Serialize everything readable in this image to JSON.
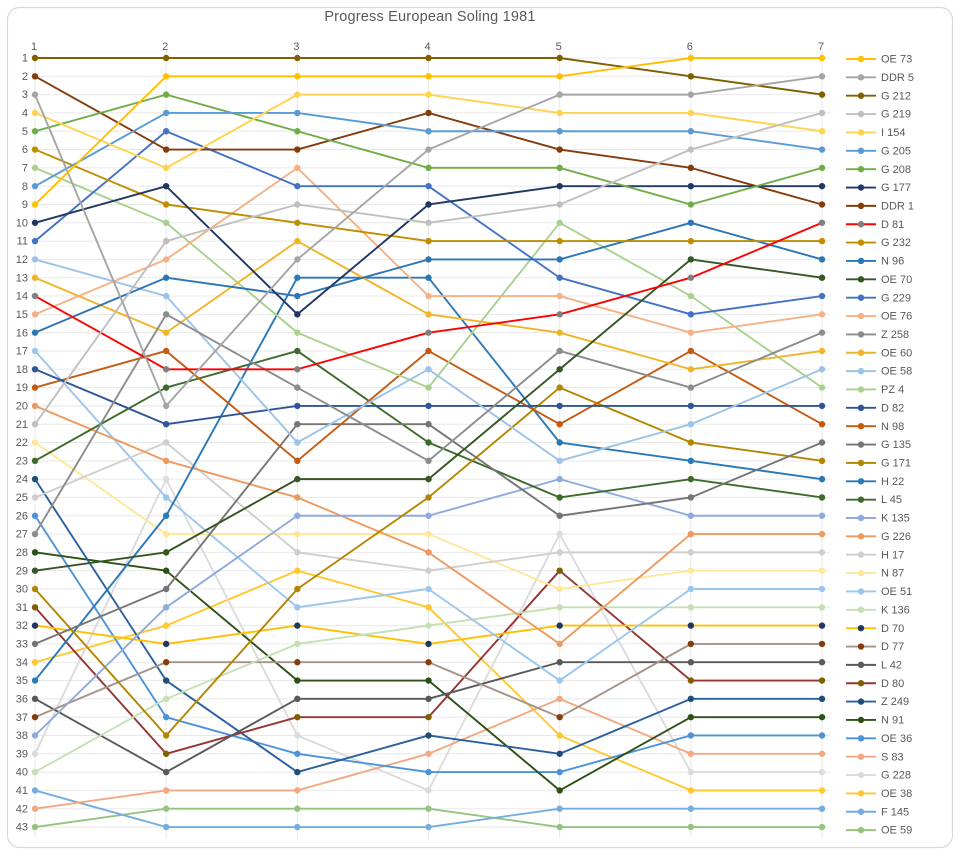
{
  "title": "Progress European Soling 1981",
  "chart_data": {
    "type": "line",
    "subtype": "bump-rank-progression",
    "title": "Progress European Soling 1981",
    "xlabel": "",
    "ylabel": "",
    "x_ticks": [
      "1",
      "2",
      "3",
      "4",
      "5",
      "6",
      "7"
    ],
    "y_ticks": [
      1,
      2,
      3,
      4,
      5,
      6,
      7,
      8,
      9,
      10,
      11,
      12,
      13,
      14,
      15,
      16,
      17,
      18,
      19,
      20,
      21,
      22,
      23,
      24,
      25,
      26,
      27,
      28,
      29,
      30,
      31,
      32,
      33,
      34,
      35,
      36,
      37,
      38,
      39,
      40,
      41,
      42,
      43
    ],
    "y_axis": {
      "min": 1,
      "max": 43,
      "inverted": true,
      "meaning": "standing after race"
    },
    "x_axis": {
      "min": 1,
      "max": 7,
      "meaning": "race number"
    },
    "grid": true,
    "legend_position": "right",
    "colors": {
      "axis_text": "#595959",
      "grid": "#E8E8E8",
      "frame": "#D9D9D9",
      "background": "#FFFFFF"
    },
    "series": [
      {
        "label": "OE 73",
        "line": "#FFC000",
        "marker": "#FFC000",
        "positions": [
          9,
          2,
          2,
          2,
          2,
          1,
          1
        ]
      },
      {
        "label": "DDR 5",
        "line": "#A5A5A5",
        "marker": "#A5A5A5",
        "positions": [
          3,
          20,
          12,
          6,
          3,
          3,
          2
        ]
      },
      {
        "label": "G 212",
        "line": "#7F6000",
        "marker": "#7F6000",
        "positions": [
          1,
          1,
          1,
          1,
          1,
          2,
          3
        ]
      },
      {
        "label": "G 219",
        "line": "#BFBFBF",
        "marker": "#BFBFBF",
        "positions": [
          21,
          11,
          9,
          10,
          9,
          6,
          4
        ]
      },
      {
        "label": "I 154",
        "line": "#FFD34D",
        "marker": "#FFD34D",
        "positions": [
          4,
          7,
          3,
          3,
          4,
          4,
          5
        ]
      },
      {
        "label": "G 205",
        "line": "#5B9BD5",
        "marker": "#5B9BD5",
        "positions": [
          8,
          4,
          4,
          5,
          5,
          5,
          6
        ]
      },
      {
        "label": "G 208",
        "line": "#70AD47",
        "marker": "#70AD47",
        "positions": [
          5,
          3,
          5,
          7,
          7,
          9,
          7
        ]
      },
      {
        "label": "G 177",
        "line": "#203864",
        "marker": "#203864",
        "positions": [
          10,
          8,
          15,
          9,
          8,
          8,
          8
        ]
      },
      {
        "label": "DDR 1",
        "line": "#843C0C",
        "marker": "#843C0C",
        "positions": [
          2,
          6,
          6,
          4,
          6,
          7,
          9
        ]
      },
      {
        "label": "D 81",
        "line": "#FF0000",
        "marker": "#7F7F7F",
        "positions": [
          14,
          18,
          18,
          16,
          15,
          13,
          10
        ]
      },
      {
        "label": "G 232",
        "line": "#BF8F00",
        "marker": "#BF8F00",
        "positions": [
          6,
          9,
          10,
          11,
          11,
          11,
          11
        ]
      },
      {
        "label": "N 96",
        "line": "#2E75B6",
        "marker": "#2E75B6",
        "positions": [
          16,
          13,
          14,
          12,
          12,
          10,
          12
        ]
      },
      {
        "label": "OE 70",
        "line": "#375623",
        "marker": "#375623",
        "positions": [
          29,
          28,
          24,
          24,
          18,
          12,
          13
        ]
      },
      {
        "label": "G 229",
        "line": "#4472C4",
        "marker": "#4472C4",
        "positions": [
          11,
          5,
          8,
          8,
          13,
          15,
          14
        ]
      },
      {
        "label": "OE 76",
        "line": "#F4B183",
        "marker": "#F4B183",
        "positions": [
          15,
          12,
          7,
          14,
          14,
          16,
          15
        ]
      },
      {
        "label": "Z 258",
        "line": "#8C8C8C",
        "marker": "#8C8C8C",
        "positions": [
          27,
          15,
          19,
          23,
          17,
          19,
          16
        ]
      },
      {
        "label": "OE 60",
        "line": "#F0B429",
        "marker": "#F0B429",
        "positions": [
          13,
          16,
          11,
          15,
          16,
          18,
          17
        ]
      },
      {
        "label": "OE 58",
        "line": "#9DC3E6",
        "marker": "#9DC3E6",
        "positions": [
          12,
          14,
          22,
          18,
          23,
          21,
          18
        ]
      },
      {
        "label": "PZ 4",
        "line": "#A9D18E",
        "marker": "#A9D18E",
        "positions": [
          7,
          10,
          16,
          19,
          10,
          14,
          19
        ]
      },
      {
        "label": "D 82",
        "line": "#2F5597",
        "marker": "#2F5597",
        "positions": [
          18,
          21,
          20,
          20,
          20,
          20,
          20
        ]
      },
      {
        "label": "N 98",
        "line": "#C55A11",
        "marker": "#C55A11",
        "positions": [
          19,
          17,
          23,
          17,
          21,
          17,
          21
        ]
      },
      {
        "label": "G 135",
        "line": "#757575",
        "marker": "#757575",
        "positions": [
          33,
          30,
          21,
          21,
          26,
          25,
          22
        ]
      },
      {
        "label": "G 171",
        "line": "#B38600",
        "marker": "#B38600",
        "positions": [
          30,
          38,
          30,
          25,
          19,
          22,
          23
        ]
      },
      {
        "label": "H 22",
        "line": "#2979B8",
        "marker": "#2979B8",
        "positions": [
          35,
          26,
          13,
          13,
          22,
          23,
          24
        ]
      },
      {
        "label": "L 45",
        "line": "#3E6B2B",
        "marker": "#3E6B2B",
        "positions": [
          23,
          19,
          17,
          22,
          25,
          24,
          25
        ]
      },
      {
        "label": "K 135",
        "line": "#8FAADC",
        "marker": "#8FAADC",
        "positions": [
          38,
          31,
          26,
          26,
          24,
          26,
          26
        ]
      },
      {
        "label": "G 226",
        "line": "#EC9A5F",
        "marker": "#EC9A5F",
        "positions": [
          20,
          23,
          25,
          28,
          33,
          27,
          27
        ]
      },
      {
        "label": "H 17",
        "line": "#D0CECE",
        "marker": "#D0CECE",
        "positions": [
          25,
          22,
          28,
          29,
          28,
          28,
          28
        ]
      },
      {
        "label": "N 87",
        "line": "#FFE699",
        "marker": "#FFE699",
        "positions": [
          22,
          27,
          27,
          27,
          30,
          29,
          29
        ]
      },
      {
        "label": "OE 51",
        "line": "#9CC6EC",
        "marker": "#9CC6EC",
        "positions": [
          17,
          25,
          31,
          30,
          35,
          30,
          30
        ]
      },
      {
        "label": "K 136",
        "line": "#C5E0B4",
        "marker": "#C5E0B4",
        "positions": [
          40,
          36,
          33,
          32,
          31,
          31,
          31
        ]
      },
      {
        "label": "D 70",
        "line": "#FFC000",
        "marker": "#1F3864",
        "positions": [
          32,
          33,
          32,
          33,
          32,
          32,
          32
        ]
      },
      {
        "label": "D 77",
        "line": "#A59288",
        "marker": "#843C0C",
        "positions": [
          37,
          34,
          34,
          34,
          37,
          33,
          33
        ]
      },
      {
        "label": "L 42",
        "line": "#595959",
        "marker": "#595959",
        "positions": [
          36,
          40,
          36,
          36,
          34,
          34,
          34
        ]
      },
      {
        "label": "D 80",
        "line": "#943634",
        "marker": "#7F6000",
        "positions": [
          31,
          39,
          37,
          37,
          29,
          35,
          35
        ]
      },
      {
        "label": "Z 249",
        "line": "#2C5F9E",
        "marker": "#1F4E79",
        "positions": [
          24,
          35,
          40,
          38,
          39,
          36,
          36
        ]
      },
      {
        "label": "N 91",
        "line": "#2D5016",
        "marker": "#2D5016",
        "positions": [
          28,
          29,
          35,
          35,
          41,
          37,
          37
        ]
      },
      {
        "label": "OE 36",
        "line": "#4D93D9",
        "marker": "#4D93D9",
        "positions": [
          26,
          37,
          39,
          40,
          40,
          38,
          38
        ]
      },
      {
        "label": "S 83",
        "line": "#F1A983",
        "marker": "#F1A983",
        "positions": [
          42,
          41,
          41,
          39,
          36,
          39,
          39
        ]
      },
      {
        "label": "G 228",
        "line": "#DBDBDB",
        "marker": "#DBDBDB",
        "positions": [
          39,
          24,
          38,
          41,
          27,
          40,
          40
        ]
      },
      {
        "label": "OE 38",
        "line": "#FFC82E",
        "marker": "#FFC82E",
        "positions": [
          34,
          32,
          29,
          31,
          38,
          41,
          41
        ]
      },
      {
        "label": "F 145",
        "line": "#74ADDF",
        "marker": "#74ADDF",
        "positions": [
          41,
          43,
          43,
          43,
          42,
          42,
          42
        ]
      },
      {
        "label": "OE 59",
        "line": "#94C47E",
        "marker": "#94C47E",
        "positions": [
          43,
          42,
          42,
          42,
          43,
          43,
          43
        ]
      }
    ]
  }
}
